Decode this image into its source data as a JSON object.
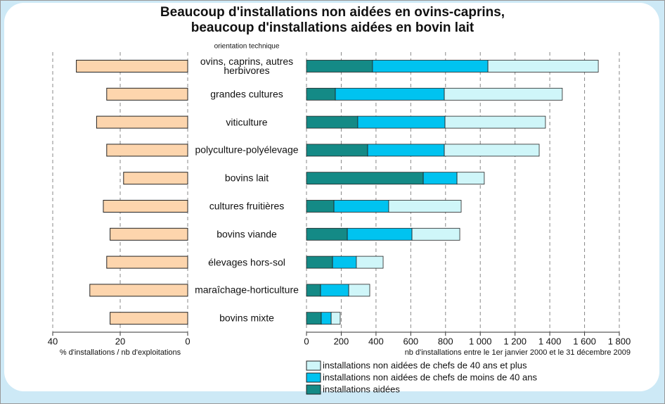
{
  "chart_data": [
    {
      "type": "bar",
      "title": [
        "Beaucoup d'installations non aidées en ovins-caprins,",
        "beaucoup d'installations aidées en bovin lait"
      ],
      "category_axis_label": "orientation technique",
      "categories": [
        "ovins, caprins, autres herbivores",
        "grandes cultures",
        "viticulture",
        "polyculture-polyélevage",
        "bovins lait",
        "cultures fruitières",
        "bovins viande",
        "élevages hors-sol",
        "maraîchage-horticulture",
        "bovins mixte"
      ],
      "values": [
        33,
        24,
        27,
        24,
        19,
        25,
        23,
        24,
        29,
        23
      ],
      "color": "#fdd5ad",
      "xlabel": "% d'installations / nb d'exploitations",
      "xlim": [
        40,
        0
      ],
      "xticks": [
        40,
        20,
        0
      ],
      "grid": true
    },
    {
      "type": "stacked_bar",
      "series": [
        {
          "name": "installations aidées",
          "color": "#148a86",
          "values": [
            380,
            166,
            295,
            352,
            672,
            158,
            235,
            150,
            81,
            85
          ]
        },
        {
          "name": "installations non aidées de chefs de moins de 40 ans",
          "color": "#00c3f0",
          "values": [
            664,
            627,
            502,
            441,
            194,
            315,
            372,
            137,
            162,
            57
          ]
        },
        {
          "name": "installations non aidées de chefs de 40 ans et plus",
          "color": "#cff6f9",
          "values": [
            635,
            679,
            578,
            546,
            157,
            417,
            275,
            154,
            121,
            52
          ]
        }
      ],
      "xlabel": "nb d'installations entre le 1er janvier 2000 et le 31 décembre 2009",
      "xlim": [
        0,
        1800
      ],
      "xticks": [
        0,
        200,
        400,
        600,
        800,
        {
          "value": 1000,
          "label": "1 000"
        },
        {
          "value": 1200,
          "label": "1 200"
        },
        {
          "value": 1400,
          "label": "1 400"
        },
        {
          "value": 1600,
          "label": "1 600"
        },
        {
          "value": 1800,
          "label": "1 800"
        }
      ],
      "grid": true
    }
  ]
}
